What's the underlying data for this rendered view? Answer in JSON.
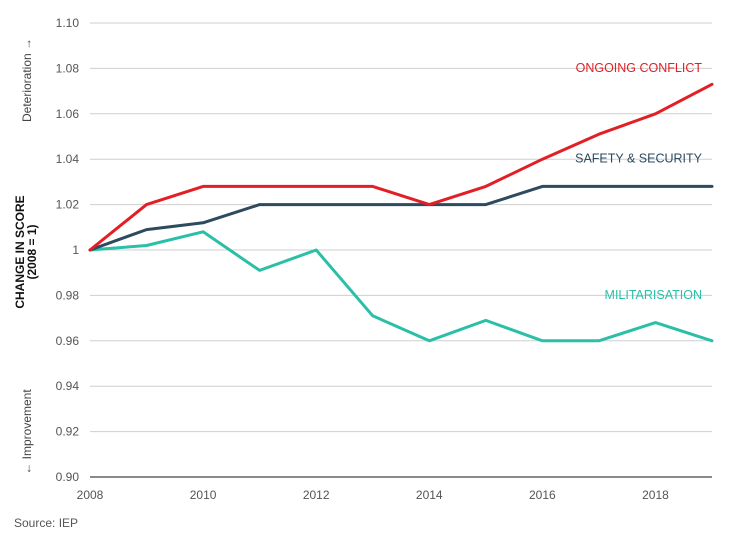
{
  "chart_data": {
    "type": "line",
    "title": "",
    "ylabel_line1": "CHANGE IN SCORE",
    "ylabel_line2": "(2008 = 1)",
    "annotation_top": "Deterioration →",
    "annotation_bottom": "← Improvement",
    "x": [
      2008,
      2009,
      2010,
      2011,
      2012,
      2013,
      2014,
      2015,
      2016,
      2017,
      2018,
      2019
    ],
    "xticks": [
      "2008",
      "2010",
      "2012",
      "2014",
      "2016",
      "2018"
    ],
    "yticks": [
      "1.10",
      "1.08",
      "1.06",
      "1.04",
      "1.02",
      "1",
      "0.98",
      "0.96",
      "0.94",
      "0.92",
      "0.90"
    ],
    "ytick_values": [
      1.1,
      1.08,
      1.06,
      1.04,
      1.02,
      1.0,
      0.98,
      0.96,
      0.94,
      0.92,
      0.9
    ],
    "xlim": [
      2008,
      2019
    ],
    "ylim": [
      0.9,
      1.1
    ],
    "grid": "horizontal",
    "series": [
      {
        "name": "ONGOING CONFLICT",
        "color": "#e31e24",
        "values": [
          1.0,
          1.02,
          1.028,
          1.028,
          1.028,
          1.028,
          1.02,
          1.028,
          1.04,
          1.051,
          1.06,
          1.073
        ]
      },
      {
        "name": "SAFETY & SECURITY",
        "color": "#2d4a5e",
        "values": [
          1.0,
          1.009,
          1.012,
          1.02,
          1.02,
          1.02,
          1.02,
          1.02,
          1.028,
          1.028,
          1.028,
          1.028
        ]
      },
      {
        "name": "MILITARISATION",
        "color": "#2bbfa8",
        "values": [
          1.0,
          1.002,
          1.008,
          0.991,
          1.0,
          0.971,
          0.96,
          0.969,
          0.96,
          0.96,
          0.968,
          0.96
        ]
      }
    ],
    "source": "Source: IEP"
  }
}
